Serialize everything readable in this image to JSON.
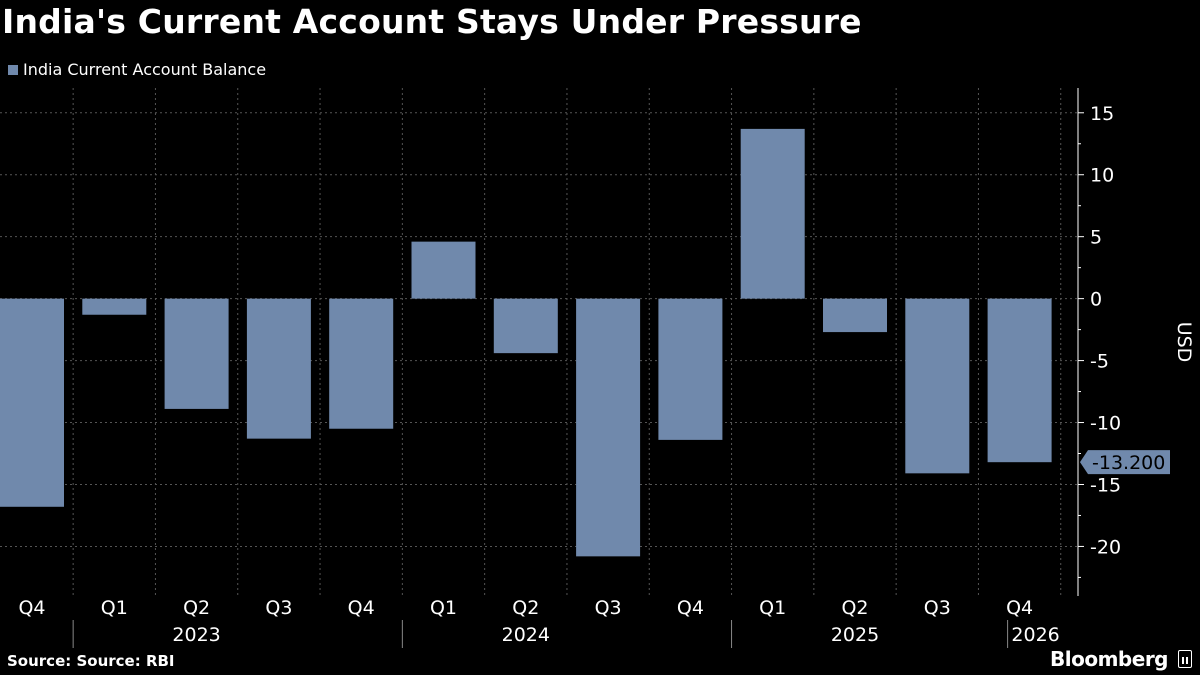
{
  "title": "India's Current Account Stays Under Pressure",
  "footer": {
    "source": "Source: Source: RBI",
    "brand": "Bloomberg"
  },
  "colors": {
    "background": "#000000",
    "bar": "#7089ac",
    "grid": "#555555",
    "text": "#ffffff"
  },
  "chart_data": {
    "type": "bar",
    "title": "India's Current Account Stays Under Pressure",
    "series": [
      {
        "name": "India Current Account Balance",
        "values": [
          -16.8,
          -1.3,
          -8.9,
          -11.3,
          -10.5,
          4.6,
          -4.4,
          -20.8,
          -11.4,
          13.7,
          -2.7,
          -14.1,
          -13.2
        ]
      }
    ],
    "categories": [
      "Q4",
      "Q1",
      "Q2",
      "Q3",
      "Q4",
      "Q1",
      "Q2",
      "Q3",
      "Q4",
      "Q1",
      "Q2",
      "Q3",
      "Q4"
    ],
    "year_labels": [
      {
        "label": "2023",
        "category_index": 2
      },
      {
        "label": "2024",
        "category_index": 6
      },
      {
        "label": "2025",
        "category_index": 10
      },
      {
        "label": "2026",
        "category_index": 12
      }
    ],
    "xlabel": "",
    "ylabel": "USD",
    "ylim": [
      -24,
      17
    ],
    "yticks": [
      15,
      10,
      5,
      0,
      -5,
      -10,
      -15,
      -20
    ],
    "ytick_labels": [
      "15",
      "10",
      "5",
      "0",
      "-5",
      "-10",
      "-15",
      "-20"
    ],
    "last_value_label": "-13.200",
    "grid": true,
    "legend_position": "top-left"
  }
}
